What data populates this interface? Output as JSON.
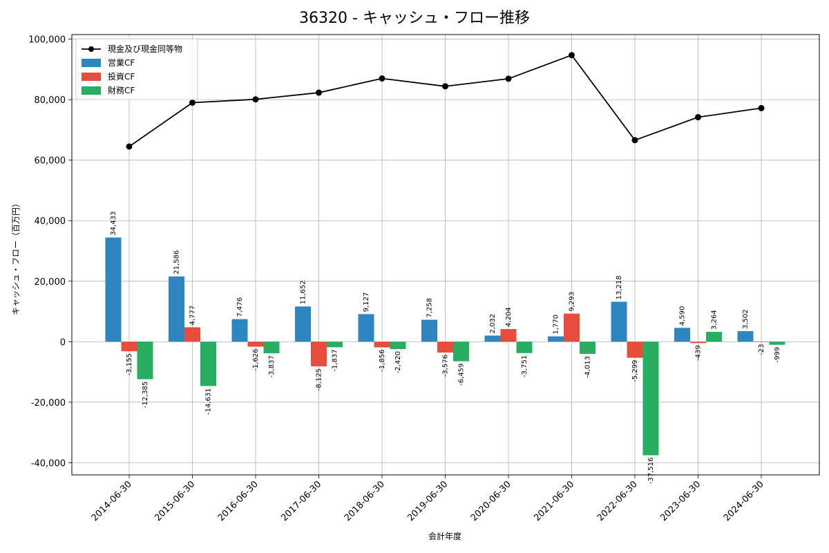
{
  "chart_data": {
    "type": "bar",
    "title": "36320 - キャッシュ・フロー推移",
    "xlabel": "会計年度",
    "ylabel": "キャッシュ・フロー（百万円）",
    "ylim": [
      -44000,
      101500
    ],
    "yticks": [
      -40000,
      -20000,
      0,
      20000,
      40000,
      60000,
      80000,
      100000
    ],
    "grid": true,
    "legend_position": "top-left",
    "categories": [
      "2014-06-30",
      "2015-06-30",
      "2016-06-30",
      "2017-06-30",
      "2018-06-30",
      "2019-06-30",
      "2020-06-30",
      "2021-06-30",
      "2022-06-30",
      "2023-06-30",
      "2024-06-30"
    ],
    "series": [
      {
        "name": "営業CF",
        "kind": "bar",
        "color": "#2e86c1",
        "values": [
          34433,
          21586,
          7476,
          11652,
          9127,
          7258,
          2032,
          1770,
          13218,
          4590,
          3502
        ]
      },
      {
        "name": "投資CF",
        "kind": "bar",
        "color": "#e74c3c",
        "values": [
          -3155,
          4777,
          -1626,
          -8125,
          -1856,
          -3576,
          4204,
          9293,
          -5299,
          -439,
          -23
        ]
      },
      {
        "name": "財務CF",
        "kind": "bar",
        "color": "#27ae60",
        "values": [
          -12385,
          -14631,
          -3837,
          -1837,
          -2420,
          -6459,
          -3751,
          -4013,
          -37516,
          3264,
          -999
        ]
      },
      {
        "name": "現金及び現金同等物",
        "kind": "line",
        "color": "#000000",
        "values": [
          64500,
          79000,
          80100,
          82300,
          87000,
          84400,
          86900,
          94700,
          66600,
          74200,
          77200
        ]
      }
    ]
  }
}
